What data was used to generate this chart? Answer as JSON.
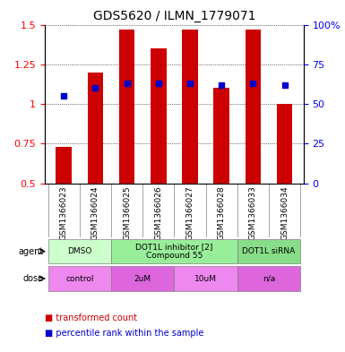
{
  "title": "GDS5620 / ILMN_1779071",
  "samples": [
    "GSM1366023",
    "GSM1366024",
    "GSM1366025",
    "GSM1366026",
    "GSM1366027",
    "GSM1366028",
    "GSM1366033",
    "GSM1366034"
  ],
  "bar_values": [
    0.73,
    1.2,
    1.47,
    1.35,
    1.47,
    1.1,
    1.47,
    1.0
  ],
  "percentile_values": [
    1.05,
    1.1,
    1.13,
    1.13,
    1.13,
    1.12,
    1.13,
    1.12
  ],
  "bar_color": "#cc0000",
  "dot_color": "#0000cc",
  "ylim_left": [
    0.5,
    1.5
  ],
  "yticks_left": [
    0.5,
    0.75,
    1.0,
    1.25,
    1.5
  ],
  "ytick_labels_left": [
    "0.5",
    "0.75",
    "1",
    "1.25",
    "1.5"
  ],
  "yticks_right": [
    0,
    25,
    50,
    75,
    100
  ],
  "ytick_labels_right": [
    "0",
    "25",
    "50",
    "75",
    "100%"
  ],
  "agent_row": {
    "groups": [
      {
        "label": "DMSO",
        "start": 0,
        "end": 2,
        "color": "#ccffcc"
      },
      {
        "label": "DOT1L inhibitor [2]\nCompound 55",
        "start": 2,
        "end": 6,
        "color": "#99ee99"
      },
      {
        "label": "DOT1L siRNA",
        "start": 6,
        "end": 8,
        "color": "#88dd88"
      }
    ]
  },
  "dose_row": {
    "groups": [
      {
        "label": "control",
        "start": 0,
        "end": 2,
        "color": "#ee88ee"
      },
      {
        "label": "2uM",
        "start": 2,
        "end": 4,
        "color": "#dd66dd"
      },
      {
        "label": "10uM",
        "start": 4,
        "end": 6,
        "color": "#ee88ee"
      },
      {
        "label": "n/a",
        "start": 6,
        "end": 8,
        "color": "#dd66dd"
      }
    ]
  },
  "legend_items": [
    {
      "label": "transformed count",
      "color": "#cc0000"
    },
    {
      "label": "percentile rank within the sample",
      "color": "#0000cc"
    }
  ],
  "bar_width": 0.5
}
